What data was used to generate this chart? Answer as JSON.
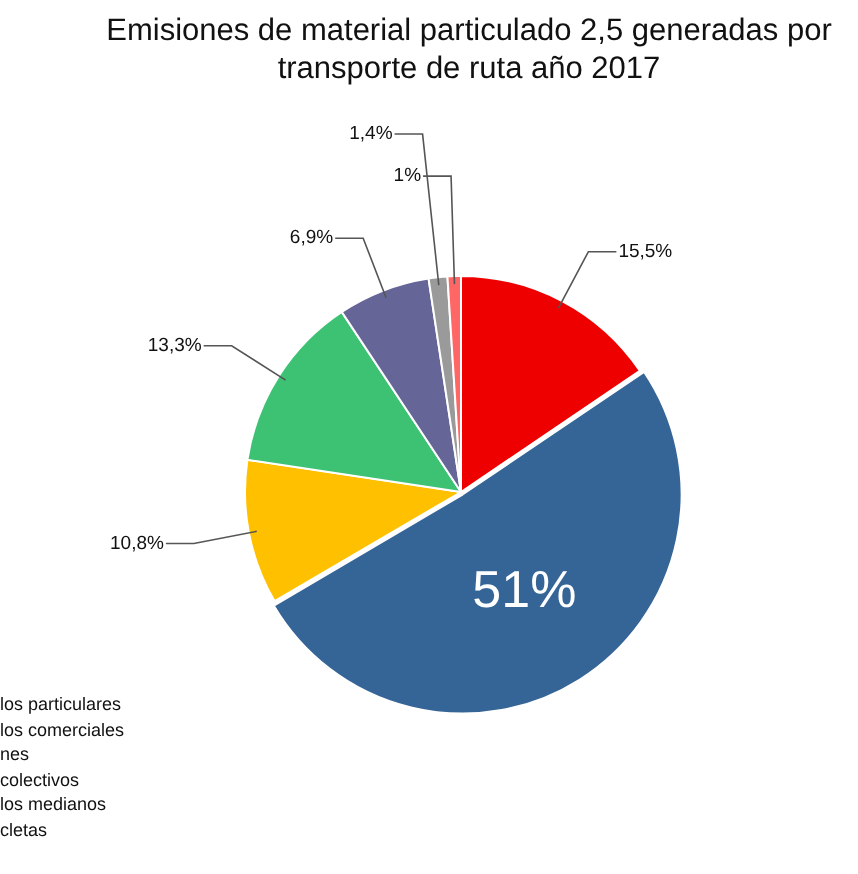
{
  "chart_data": {
    "type": "pie",
    "title": "Emisiones de material particulado 2,5 generadas por transporte de ruta año 2017",
    "categories": [
      null,
      null,
      null,
      null,
      null,
      null,
      null
    ],
    "values": [
      15.5,
      51,
      10.8,
      13.3,
      6.9,
      1.4,
      1
    ],
    "value_labels": [
      "15,5%",
      "51%",
      "10,8%",
      "13,3%",
      "6,9%",
      "1,4%",
      "1%"
    ],
    "colors": [
      "#ee0000",
      "#356496",
      "#ffc000",
      "#3dc274",
      "#656598",
      "#9a9a9a",
      "#ff6666"
    ],
    "annotations": [
      "los particulares",
      "los comerciales",
      "nes",
      "colectivos",
      "los medianos",
      "cletas"
    ],
    "legend": false
  }
}
